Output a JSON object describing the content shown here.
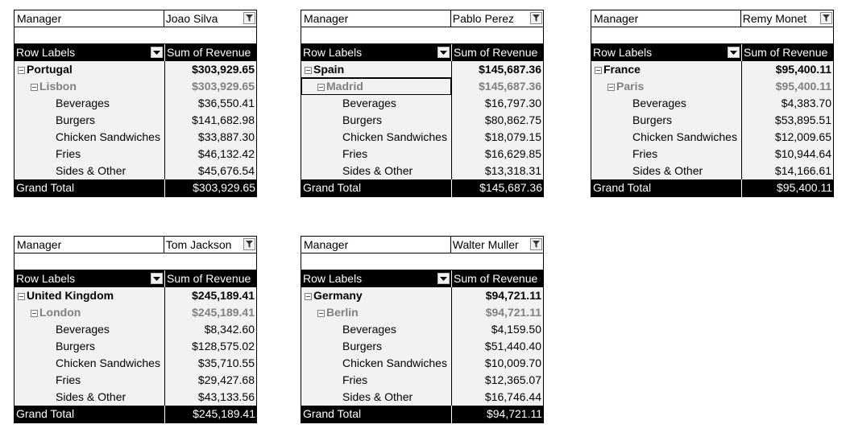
{
  "labels": {
    "manager": "Manager",
    "row_labels": "Row Labels",
    "sum_of_revenue": "Sum of Revenue",
    "grand_total": "Grand Total"
  },
  "pivots": [
    {
      "manager": "Joao Silva",
      "country": "Portugal",
      "country_total": "$303,929.65",
      "city": "Lisbon",
      "city_total": "$303,929.65",
      "items": [
        {
          "label": "Beverages",
          "value": "$36,550.41"
        },
        {
          "label": "Burgers",
          "value": "$141,682.98"
        },
        {
          "label": "Chicken Sandwiches",
          "value": "$33,887.30"
        },
        {
          "label": "Fries",
          "value": "$46,132.42"
        },
        {
          "label": "Sides & Other",
          "value": "$45,676.54"
        }
      ],
      "grand_total": "$303,929.65"
    },
    {
      "manager": "Pablo Perez",
      "country": "Spain",
      "country_total": "$145,687.36",
      "city": "Madrid",
      "city_total": "$145,687.36",
      "items": [
        {
          "label": "Beverages",
          "value": "$16,797.30"
        },
        {
          "label": "Burgers",
          "value": "$80,862.75"
        },
        {
          "label": "Chicken Sandwiches",
          "value": "$18,079.15"
        },
        {
          "label": "Fries",
          "value": "$16,629.85"
        },
        {
          "label": "Sides & Other",
          "value": "$13,318.31"
        }
      ],
      "grand_total": "$145,687.36"
    },
    {
      "manager": "Remy Monet",
      "country": "France",
      "country_total": "$95,400.11",
      "city": "Paris",
      "city_total": "$95,400.11",
      "items": [
        {
          "label": "Beverages",
          "value": "$4,383.70"
        },
        {
          "label": "Burgers",
          "value": "$53,895.51"
        },
        {
          "label": "Chicken Sandwiches",
          "value": "$12,009.65"
        },
        {
          "label": "Fries",
          "value": "$10,944.64"
        },
        {
          "label": "Sides & Other",
          "value": "$14,166.61"
        }
      ],
      "grand_total": "$95,400.11"
    },
    {
      "manager": "Tom Jackson",
      "country": "United Kingdom",
      "country_total": "$245,189.41",
      "city": "London",
      "city_total": "$245,189.41",
      "items": [
        {
          "label": "Beverages",
          "value": "$8,342.60"
        },
        {
          "label": "Burgers",
          "value": "$128,575.02"
        },
        {
          "label": "Chicken Sandwiches",
          "value": "$35,710.55"
        },
        {
          "label": "Fries",
          "value": "$29,427.68"
        },
        {
          "label": "Sides & Other",
          "value": "$43,133.56"
        }
      ],
      "grand_total": "$245,189.41"
    },
    {
      "manager": "Walter Muller",
      "country": "Germany",
      "country_total": "$94,721.11",
      "city": "Berlin",
      "city_total": "$94,721.11",
      "items": [
        {
          "label": "Beverages",
          "value": "$4,159.50"
        },
        {
          "label": "Burgers",
          "value": "$51,440.40"
        },
        {
          "label": "Chicken Sandwiches",
          "value": "$10,009.70"
        },
        {
          "label": "Fries",
          "value": "$12,365.07"
        },
        {
          "label": "Sides & Other",
          "value": "$16,746.44"
        }
      ],
      "grand_total": "$94,721.11"
    }
  ]
}
